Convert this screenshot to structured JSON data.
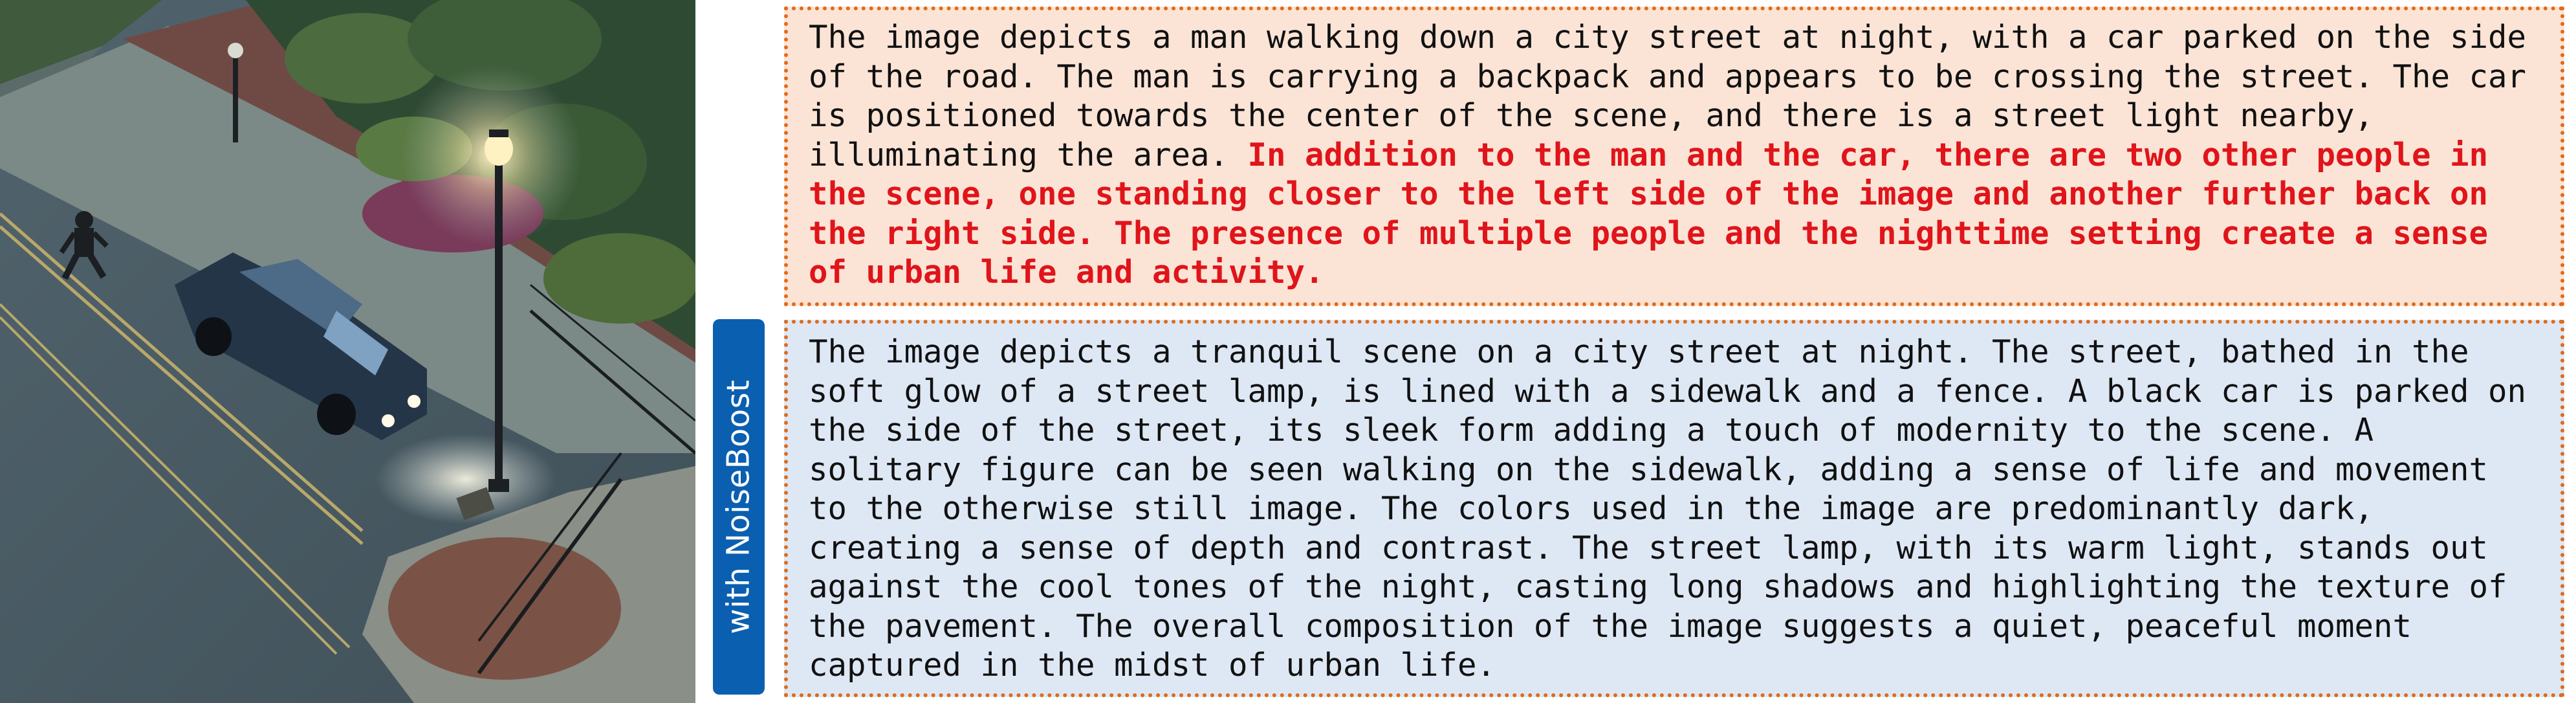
{
  "scene_image": {
    "icon": "night-street-illustration"
  },
  "side_tab": {
    "label": "with NoiseBoost",
    "color": "#0a5fb0"
  },
  "captions": {
    "top": {
      "plain": "The image depicts a man walking down a city street at night, with a car parked on the side of the road. The man is carrying a backpack and appears to be crossing the street. The car is positioned towards the center of the scene, and there is a street light nearby, illuminating the area.",
      "highlight": "In addition to the man and the car, there are two other people in the scene, one standing closer to the left side of the image and another further back on the right side. The presence of multiple people and the nighttime setting create a sense of urban life and activity.",
      "background": "#fbe4d6",
      "highlight_color": "#e0141a"
    },
    "bottom": {
      "plain": "The image depicts a tranquil scene on a city street at night. The street, bathed in the soft glow of a street lamp, is lined with a sidewalk and a fence. A black car is parked on the side of the street, its sleek form adding a touch of modernity to the scene. A solitary figure can be seen walking on the sidewalk, adding a sense of life and movement to the otherwise still image. The colors used in the image are predominantly dark, creating a sense of depth and contrast. The street lamp, with its warm light, stands out against the cool tones of the night, casting long shadows and highlighting the texture of the pavement. The overall composition of the image suggests a quiet, peaceful moment captured in the midst of urban life.",
      "background": "#dee8f5"
    },
    "border_color": "#e06a1a"
  }
}
